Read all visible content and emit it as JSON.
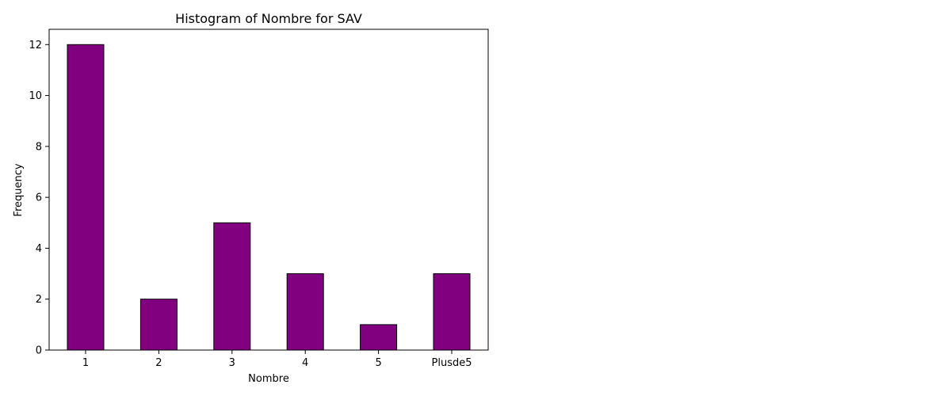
{
  "chart_data": {
    "type": "bar",
    "title": "Histogram of Nombre for SAV",
    "xlabel": "Nombre",
    "ylabel": "Frequency",
    "categories": [
      "1",
      "2",
      "3",
      "4",
      "5",
      "Plusde5"
    ],
    "values": [
      12,
      2,
      5,
      3,
      1,
      3
    ],
    "ylim": [
      0,
      12.6
    ],
    "yticks": [
      0,
      2,
      4,
      6,
      8,
      10,
      12
    ],
    "grid": false,
    "colors": {
      "bar_fill": "#800080",
      "bar_edge": "#000000"
    }
  }
}
